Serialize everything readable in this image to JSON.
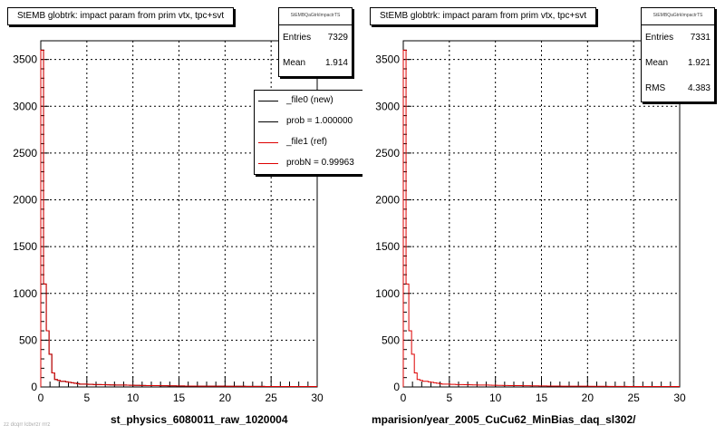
{
  "colors": {
    "data": "#000000",
    "ref": "#dd0000",
    "grid": "#000000"
  },
  "panels": [
    {
      "id": "left",
      "title": "StEMB globtrk: impact param from prim vtx, tpc+svt",
      "stats": {
        "name": "StEMBQaGtrkImpactrTS",
        "rows": [
          {
            "key": "Entries",
            "value": "7329"
          },
          {
            "key": "Mean",
            "value": "1.914"
          }
        ]
      },
      "legend": [
        {
          "label": "_file0 (new)",
          "color": "#000000"
        },
        {
          "label": "prob = 1.000000",
          "color": "#000000"
        },
        {
          "label": "_file1 (ref)",
          "color": "#dd0000"
        },
        {
          "label": "probN = 0.99963",
          "color": "#dd0000"
        }
      ],
      "xaxis_title": "st_physics_6080011_raw_1020004"
    },
    {
      "id": "right",
      "title": "StEMB globtrk: impact param from prim vtx, tpc+svt",
      "stats": {
        "name": "StEMBQaGtrkImpactrTS",
        "rows": [
          {
            "key": "Entries",
            "value": "7331"
          },
          {
            "key": "Mean",
            "value": "1.921"
          },
          {
            "key": "RMS",
            "value": "4.383"
          }
        ]
      },
      "xaxis_title": "mparision/year_2005_CuCu62_MinBias_daq_sl302/"
    }
  ],
  "footer_text": "zz dcqrr lcbvrzr rrrz",
  "chart_data": [
    {
      "type": "histogram",
      "title": "StEMB globtrk: impact param from prim vtx, tpc+svt",
      "xlabel": "st_physics_6080011_raw_1020004",
      "ylabel": "",
      "xlim": [
        0,
        30
      ],
      "ylim": [
        0,
        3700
      ],
      "xticks": [
        0,
        5,
        10,
        15,
        20,
        25,
        30
      ],
      "yticks": [
        0,
        500,
        1000,
        1500,
        2000,
        2500,
        3000,
        3500
      ],
      "grid": true,
      "bin_width": 0.3,
      "series": [
        {
          "name": "_file0 (new)",
          "color": "#000000",
          "values": [
            3600,
            1100,
            600,
            350,
            150,
            80,
            70,
            60,
            60,
            55,
            50,
            45,
            40,
            35,
            30,
            30,
            30,
            28,
            28,
            26,
            26,
            25,
            24,
            24,
            23,
            22,
            22,
            21,
            20,
            20,
            20,
            19,
            18,
            18,
            17,
            17,
            16,
            16,
            15,
            15,
            15,
            14,
            14,
            13,
            13,
            13,
            12,
            12,
            12,
            11,
            11,
            11,
            10,
            10,
            10,
            10,
            10,
            9,
            9,
            9,
            9,
            9,
            8,
            8,
            8,
            8,
            8,
            7,
            7,
            7,
            7,
            7,
            7,
            7,
            6,
            6,
            6,
            6,
            6,
            6,
            6,
            5,
            5,
            5,
            5,
            5,
            5,
            5,
            5,
            5,
            5,
            5,
            5,
            5,
            5,
            5,
            5,
            5,
            5,
            5
          ]
        },
        {
          "name": "_file1 (ref)",
          "color": "#dd0000",
          "values": [
            3600,
            1100,
            600,
            350,
            150,
            80,
            70,
            60,
            60,
            55,
            50,
            45,
            40,
            35,
            30,
            30,
            30,
            28,
            28,
            26,
            26,
            25,
            24,
            24,
            23,
            22,
            22,
            21,
            20,
            20,
            20,
            19,
            18,
            18,
            17,
            17,
            16,
            16,
            15,
            15,
            15,
            14,
            14,
            13,
            13,
            13,
            12,
            12,
            12,
            11,
            11,
            11,
            10,
            10,
            10,
            10,
            10,
            9,
            9,
            9,
            9,
            9,
            8,
            8,
            8,
            8,
            8,
            7,
            7,
            7,
            7,
            7,
            7,
            7,
            6,
            6,
            6,
            6,
            6,
            6,
            6,
            5,
            5,
            5,
            5,
            5,
            5,
            5,
            5,
            5,
            5,
            5,
            5,
            5,
            5,
            5,
            5,
            5,
            5,
            5
          ]
        }
      ]
    },
    {
      "type": "histogram",
      "title": "StEMB globtrk: impact param from prim vtx, tpc+svt",
      "xlabel": "mparision/year_2005_CuCu62_MinBias_daq_sl302/",
      "ylabel": "",
      "xlim": [
        0,
        30
      ],
      "ylim": [
        0,
        3700
      ],
      "xticks": [
        0,
        5,
        10,
        15,
        20,
        25,
        30
      ],
      "yticks": [
        0,
        500,
        1000,
        1500,
        2000,
        2500,
        3000,
        3500
      ],
      "grid": true,
      "bin_width": 0.3,
      "series": [
        {
          "name": "",
          "color": "#dd0000",
          "values": [
            3600,
            1100,
            600,
            350,
            150,
            80,
            70,
            60,
            60,
            55,
            50,
            45,
            40,
            35,
            30,
            30,
            30,
            28,
            28,
            26,
            26,
            25,
            24,
            24,
            23,
            22,
            22,
            21,
            20,
            20,
            20,
            19,
            18,
            18,
            17,
            17,
            16,
            16,
            15,
            15,
            15,
            14,
            14,
            13,
            13,
            13,
            12,
            12,
            12,
            11,
            11,
            11,
            10,
            10,
            10,
            10,
            10,
            9,
            9,
            9,
            9,
            9,
            8,
            8,
            8,
            8,
            8,
            7,
            7,
            7,
            7,
            7,
            7,
            7,
            6,
            6,
            6,
            6,
            6,
            6,
            6,
            5,
            5,
            5,
            5,
            5,
            5,
            5,
            5,
            5,
            5,
            5,
            5,
            5,
            5,
            5,
            5,
            5,
            5,
            5
          ]
        }
      ]
    }
  ]
}
